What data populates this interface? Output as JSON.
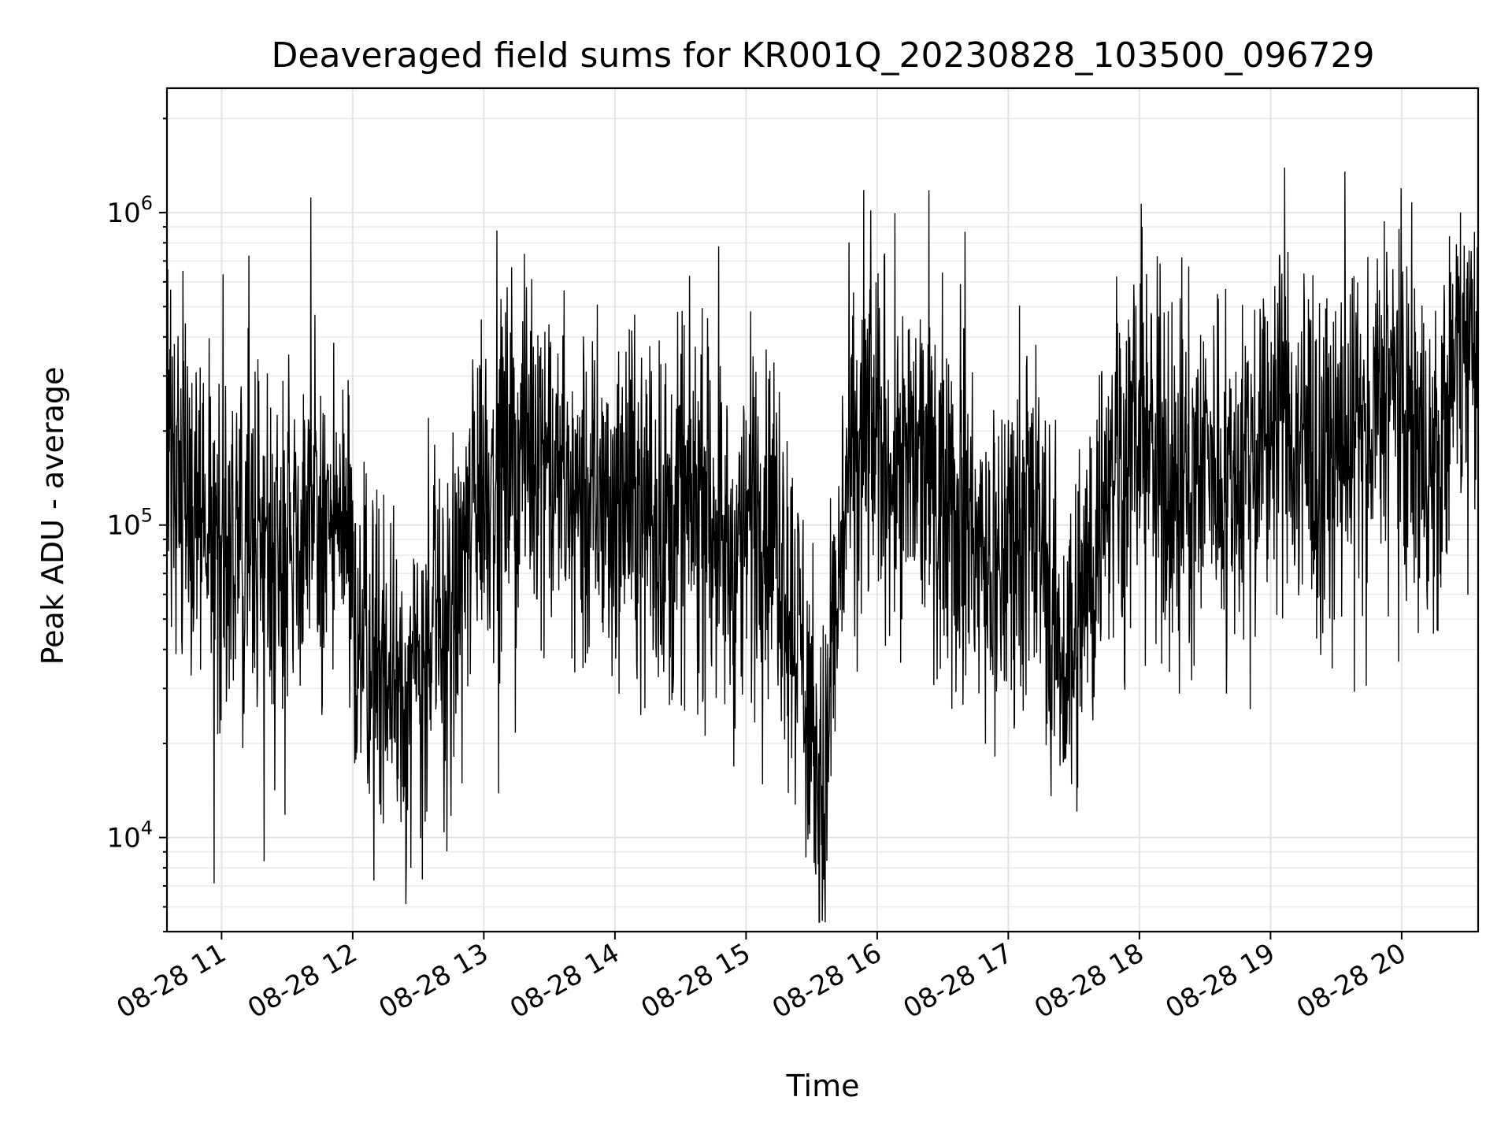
{
  "chart_data": {
    "type": "line",
    "title": "Deaveraged field sums for KR001Q_20230828_103500_096729",
    "xlabel": "Time",
    "ylabel": "Peak ADU - average",
    "yscale": "log",
    "ylim": [
      5000,
      2500000
    ],
    "xlim": [
      "08-28 10:35",
      "08-28 20:35"
    ],
    "x_ticks": [
      "08-28 11",
      "08-28 12",
      "08-28 13",
      "08-28 14",
      "08-28 15",
      "08-28 16",
      "08-28 17",
      "08-28 18",
      "08-28 19",
      "08-28 20"
    ],
    "y_ticks": [
      {
        "base": "10",
        "exp": "4",
        "value": 10000
      },
      {
        "base": "10",
        "exp": "5",
        "value": 100000
      },
      {
        "base": "10",
        "exp": "6",
        "value": 1000000
      }
    ],
    "grid": true,
    "legend": "none",
    "series_color": "#000000",
    "series": [
      {
        "x": [
          "08-28 10:35",
          "08-28 10:45",
          "08-28 10:55",
          "08-28 11:05",
          "08-28 11:15",
          "08-28 11:25",
          "08-28 11:35",
          "08-28 11:45",
          "08-28 11:55",
          "08-28 12:05",
          "08-28 12:15",
          "08-28 12:25",
          "08-28 12:35",
          "08-28 12:45",
          "08-28 12:55",
          "08-28 13:05",
          "08-28 13:15",
          "08-28 13:25",
          "08-28 13:35",
          "08-28 13:45",
          "08-28 13:55",
          "08-28 14:05",
          "08-28 14:15",
          "08-28 14:25",
          "08-28 14:35",
          "08-28 14:45",
          "08-28 14:55",
          "08-28 15:05",
          "08-28 15:15",
          "08-28 15:25",
          "08-28 15:35",
          "08-28 15:45",
          "08-28 15:55",
          "08-28 16:05",
          "08-28 16:15",
          "08-28 16:25",
          "08-28 16:35",
          "08-28 16:45",
          "08-28 16:55",
          "08-28 17:05",
          "08-28 17:15",
          "08-28 17:25",
          "08-28 17:35",
          "08-28 17:45",
          "08-28 17:55",
          "08-28 18:05",
          "08-28 18:15",
          "08-28 18:25",
          "08-28 18:35",
          "08-28 18:45",
          "08-28 18:55",
          "08-28 19:05",
          "08-28 19:15",
          "08-28 19:25",
          "08-28 19:35",
          "08-28 19:45",
          "08-28 19:55",
          "08-28 20:05",
          "08-28 20:15",
          "08-28 20:25",
          "08-28 20:35"
        ],
        "y": [
          180000,
          140000,
          90000,
          85000,
          100000,
          80000,
          110000,
          100000,
          90000,
          45000,
          35000,
          30000,
          40000,
          45000,
          120000,
          150000,
          180000,
          200000,
          150000,
          120000,
          110000,
          130000,
          120000,
          100000,
          110000,
          110000,
          70000,
          130000,
          90000,
          40000,
          12000,
          120000,
          200000,
          180000,
          170000,
          140000,
          130000,
          90000,
          70000,
          120000,
          90000,
          35000,
          60000,
          140000,
          200000,
          170000,
          140000,
          130000,
          160000,
          150000,
          180000,
          240000,
          160000,
          150000,
          200000,
          180000,
          300000,
          200000,
          150000,
          350000,
          400000
        ]
      }
    ]
  }
}
